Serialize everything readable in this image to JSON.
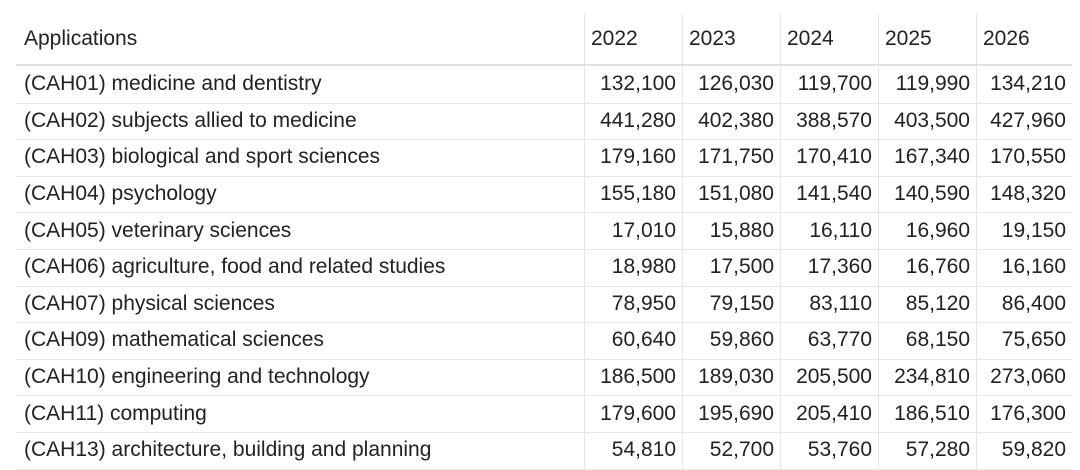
{
  "table": {
    "header": [
      "Applications",
      "2022",
      "2023",
      "2024",
      "2025",
      "2026"
    ],
    "rows": [
      [
        "(CAH01) medicine and dentistry",
        "132,100",
        "126,030",
        "119,700",
        "119,990",
        "134,210"
      ],
      [
        "(CAH02) subjects allied to medicine",
        "441,280",
        "402,380",
        "388,570",
        "403,500",
        "427,960"
      ],
      [
        "(CAH03) biological and sport sciences",
        "179,160",
        "171,750",
        "170,410",
        "167,340",
        "170,550"
      ],
      [
        "(CAH04) psychology",
        "155,180",
        "151,080",
        "141,540",
        "140,590",
        "148,320"
      ],
      [
        "(CAH05) veterinary sciences",
        "17,010",
        "15,880",
        "16,110",
        "16,960",
        "19,150"
      ],
      [
        "(CAH06) agriculture, food and related studies",
        "18,980",
        "17,500",
        "17,360",
        "16,760",
        "16,160"
      ],
      [
        "(CAH07) physical sciences",
        "78,950",
        "79,150",
        "83,110",
        "85,120",
        "86,400"
      ],
      [
        "(CAH09) mathematical sciences",
        "60,640",
        "59,860",
        "63,770",
        "68,150",
        "75,650"
      ],
      [
        "(CAH10) engineering and technology",
        "186,500",
        "189,030",
        "205,500",
        "234,810",
        "273,060"
      ],
      [
        "(CAH11) computing",
        "179,600",
        "195,690",
        "205,410",
        "186,510",
        "176,300"
      ],
      [
        "(CAH13) architecture, building and planning",
        "54,810",
        "52,700",
        "53,760",
        "57,280",
        "59,820"
      ]
    ]
  }
}
